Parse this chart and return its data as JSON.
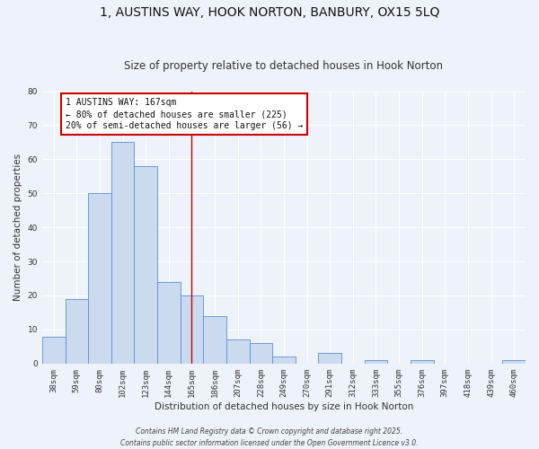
{
  "title": "1, AUSTINS WAY, HOOK NORTON, BANBURY, OX15 5LQ",
  "subtitle": "Size of property relative to detached houses in Hook Norton",
  "xlabel": "Distribution of detached houses by size in Hook Norton",
  "ylabel": "Number of detached properties",
  "bar_labels": [
    "38sqm",
    "59sqm",
    "80sqm",
    "102sqm",
    "123sqm",
    "144sqm",
    "165sqm",
    "186sqm",
    "207sqm",
    "228sqm",
    "249sqm",
    "270sqm",
    "291sqm",
    "312sqm",
    "333sqm",
    "355sqm",
    "376sqm",
    "397sqm",
    "418sqm",
    "439sqm",
    "460sqm"
  ],
  "bar_values": [
    8,
    19,
    50,
    65,
    58,
    24,
    20,
    14,
    7,
    6,
    2,
    0,
    3,
    0,
    1,
    0,
    1,
    0,
    0,
    0,
    1
  ],
  "bar_color": "#ccdaf0",
  "bar_edge_color": "#5b8fc9",
  "ylim": [
    0,
    80
  ],
  "yticks": [
    0,
    10,
    20,
    30,
    40,
    50,
    60,
    70,
    80
  ],
  "redline_index": 6,
  "annotation_title": "1 AUSTINS WAY: 167sqm",
  "annotation_line1": "← 80% of detached houses are smaller (225)",
  "annotation_line2": "20% of semi-detached houses are larger (56) →",
  "annotation_box_color": "#ffffff",
  "annotation_box_edge": "#cc0000",
  "redline_color": "#cc0000",
  "background_color": "#eef2fa",
  "grid_color": "#ffffff",
  "footer1": "Contains HM Land Registry data © Crown copyright and database right 2025.",
  "footer2": "Contains public sector information licensed under the Open Government Licence v3.0.",
  "title_fontsize": 10,
  "subtitle_fontsize": 8.5,
  "axis_label_fontsize": 7.5,
  "tick_fontsize": 6.5,
  "annotation_title_fontsize": 7.5,
  "annotation_fontsize": 7.0,
  "footer_fontsize": 5.5
}
